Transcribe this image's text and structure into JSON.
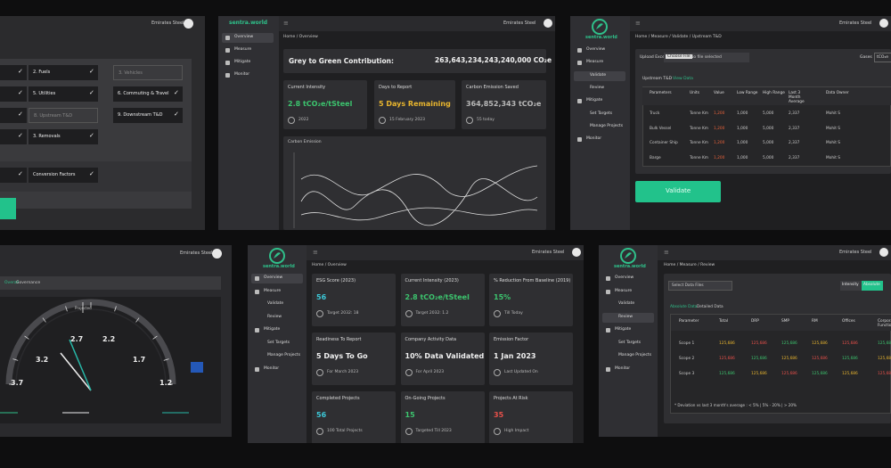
{
  "checklist": {
    "company": "Emirates Steel",
    "items": [
      "2. Fuels",
      "3. Vehicles",
      "5. Utilities",
      "6. Commuting & Travel",
      "8. Upstream T&D",
      "9. Downstream T&D",
      "3. Removals",
      "Conversion Factors"
    ]
  },
  "overview": {
    "logo": "sentra.world",
    "company": "Emirates Steel",
    "nav": [
      "Overview",
      "Measure",
      "Mitigate",
      "Monitor"
    ],
    "breadcrumb": "Home / Overview",
    "contribution": {
      "label": "Grey to Green Contribution:",
      "value": "263,643,234,243,240,000 CO₂e"
    },
    "cards": [
      {
        "title": "Current Intensity",
        "value": "2.8 tCO₂e/tSteel",
        "note": "2022",
        "color": "#3cc46e"
      },
      {
        "title": "Days to Report",
        "value": "5 Days Remaining",
        "note": "15 February 2023",
        "color": "#e8b52e"
      },
      {
        "title": "Carbon Emission Saved",
        "value": "364,852,343 tCO₂e",
        "note": "55 today",
        "color": "#b8b8b8"
      }
    ],
    "chart_title": "Carbon Emission"
  },
  "validate": {
    "logo": "sentra.world",
    "company": "Emirates Steel",
    "nav": [
      "Overview",
      "Measure",
      "Validate",
      "Review",
      "Mitigate",
      "Set Targets",
      "Manage Projects",
      "Monitor"
    ],
    "breadcrumb": "Home / Measure / Validate / Upstream T&D",
    "upload_label": "Upload Excel",
    "choose_file": "Choose File",
    "no_file": "No file selected",
    "units_label": "Gases",
    "units_value": "tCO₂e",
    "tabs": [
      "Upstream T&D",
      "View Data"
    ],
    "table": {
      "columns": [
        "Parameters",
        "Units",
        "Value",
        "Low Range",
        "High Range",
        "Last 3 Month Average",
        "Data Owner"
      ],
      "rows": [
        [
          "Truck",
          "Tonne Km",
          "1,200",
          "1,000",
          "5,000",
          "2,337",
          "Mohit S"
        ],
        [
          "Bulk Vessel",
          "Tonne Km",
          "1,200",
          "1,000",
          "5,000",
          "2,337",
          "Mohit S"
        ],
        [
          "Container Ship",
          "Tonne Km",
          "1,200",
          "1,000",
          "5,000",
          "2,337",
          "Mohit S"
        ],
        [
          "Barge",
          "Tonne Km",
          "1,200",
          "1,000",
          "5,000",
          "2,337",
          "Mohit S"
        ]
      ]
    },
    "button": "Validate"
  },
  "gauge": {
    "company": "Emirates Steel",
    "tabs": [
      "Overall",
      "Governance"
    ],
    "projected": "Projected",
    "scale": [
      "3.7",
      "3.2",
      "2.7",
      "2.2",
      "1.7",
      "1.2"
    ]
  },
  "dashboard": {
    "logo": "sentra.world",
    "company": "Emirates Steel",
    "nav": [
      "Overview",
      "Measure",
      "Validate",
      "Review",
      "Mitigate",
      "Set Targets",
      "Manage Projects",
      "Monitor"
    ],
    "breadcrumb": "Home / Overview",
    "cards": [
      {
        "title": "ESG Score (2023)",
        "value": "56",
        "note": "Target 2032: 18",
        "color": "#3cc8d8"
      },
      {
        "title": "Current Intensity (2023)",
        "value": "2.8 tCO₂e/tSteel",
        "note": "Target 2032: 1.2",
        "color": "#3cc46e"
      },
      {
        "title": "% Reduction From Baseline (2019)",
        "value": "15%",
        "note": "Till Today",
        "color": "#3cc46e"
      },
      {
        "title": "Readiness To Report",
        "value": "5 Days To Go",
        "note": "For March 2023",
        "color": "#f0f0f0"
      },
      {
        "title": "Company Activity Data",
        "value": "10% Data Validated",
        "note": "For April 2023",
        "color": "#f0f0f0"
      },
      {
        "title": "Emission Factor",
        "value": "1 Jan 2023",
        "note": "Last Updated On",
        "color": "#f0f0f0"
      },
      {
        "title": "Completed Projects",
        "value": "56",
        "note": "100 Total Projects",
        "color": "#3cc8d8"
      },
      {
        "title": "On-Going Projects",
        "value": "15",
        "note": "Targeted Till 2023",
        "color": "#3cc46e"
      },
      {
        "title": "Projects At Risk",
        "value": "35",
        "note": "High Impact",
        "color": "#e8504a"
      }
    ]
  },
  "review": {
    "logo": "sentra.world",
    "company": "Emirates Steel",
    "nav": [
      "Overview",
      "Measure",
      "Validate",
      "Review",
      "Mitigate",
      "Set Targets",
      "Manage Projects",
      "Monitor"
    ],
    "breadcrumb": "Home / Measure / Review",
    "select": "Select Data Files",
    "toggles": [
      "Intensity",
      "Absolute"
    ],
    "tabs": [
      "Absolute Data",
      "Detailed Data"
    ],
    "table": {
      "columns": [
        "Parameter",
        "Total",
        "DRP",
        "SMP",
        "RM",
        "Offices",
        "Corporate Functions"
      ],
      "rows": [
        [
          "Scope 1",
          "125,686",
          "125,686",
          "125,686",
          "125,686",
          "125,686",
          "125,686"
        ],
        [
          "Scope 2",
          "125,686",
          "125,686",
          "125,686",
          "125,686",
          "125,686",
          "125,686"
        ],
        [
          "Scope 3",
          "125,686",
          "125,686",
          "125,686",
          "125,686",
          "125,686",
          "125,686"
        ]
      ]
    },
    "footnote": "* Deviation vs last 3 month's average : < 5% | 5% - 20% | > 20%"
  }
}
